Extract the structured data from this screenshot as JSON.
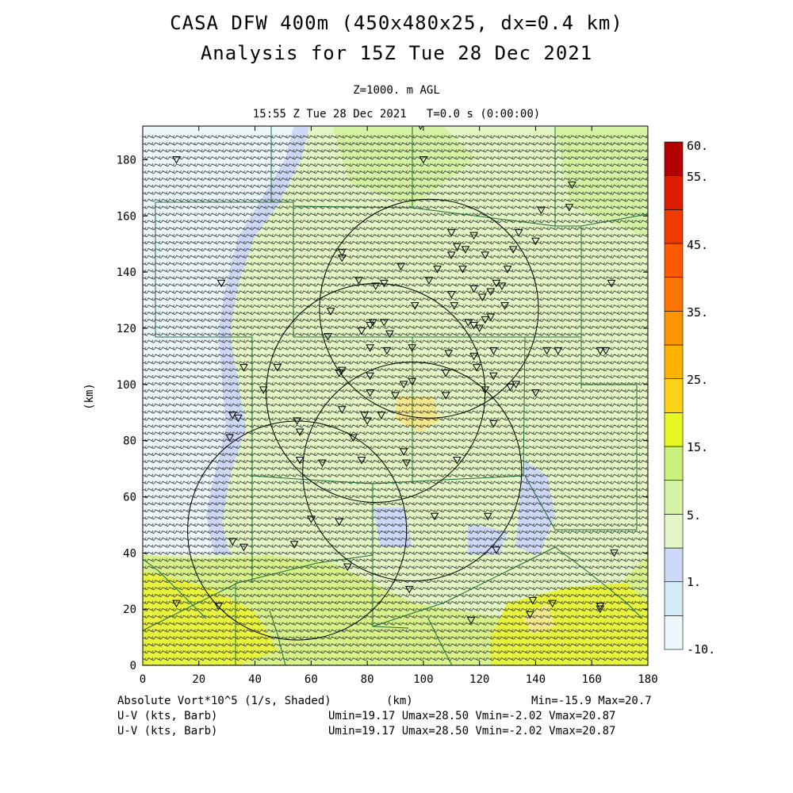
{
  "header": {
    "title_line1": "CASA DFW 400m (450x480x25, dx=0.4 km)",
    "title_line2": "Analysis for 15Z Tue 28 Dec 2021",
    "level": "Z=1000. m AGL",
    "time": "15:55 Z Tue 28 Dec 2021   T=0.0 s (0:00:00)"
  },
  "footer": {
    "field1": "Absolute Vort*10^5 (1/s, Shaded)",
    "xunit": "(km)",
    "minmax": "Min=-15.9 Max=20.7",
    "field2": "U-V (kts, Barb)",
    "stats2": "Umin=19.17 Umax=28.50 Vmin=-2.02 Vmax=20.87",
    "field3": "U-V (kts, Barb)",
    "stats3": "Umin=19.17 Umax=28.50 Vmin=-2.02 Vmax=20.87"
  },
  "chart_data": {
    "type": "heatmap",
    "title": "CASA DFW 400m (450x480x25, dx=0.4 km)",
    "xlabel": "(km)",
    "ylabel": "(km)",
    "xlim": [
      0,
      180
    ],
    "ylim": [
      0,
      192
    ],
    "x_ticks": [
      0,
      20,
      40,
      60,
      80,
      100,
      120,
      140,
      160,
      180
    ],
    "y_ticks": [
      0,
      20,
      40,
      60,
      80,
      100,
      120,
      140,
      160,
      180
    ],
    "colorbar": {
      "labels": [
        "60.",
        "55.",
        "45.",
        "35.",
        "25.",
        "15.",
        "5.",
        "1.",
        "-10."
      ],
      "colors": [
        "#ecf8fb",
        "#d2ecf7",
        "#ccd8f6",
        "#e2f7c4",
        "#d3f3a2",
        "#c8f07c",
        "#e6f524",
        "#ffd21a",
        "#ffb300",
        "#ff9400",
        "#ff7500",
        "#ff5a00",
        "#ef3a00",
        "#dd1c00",
        "#b20000"
      ]
    },
    "shading_regions": [
      {
        "label": "-10.",
        "color": "#ecf8fb"
      },
      {
        "label": "1.",
        "color": "#ccd8f6"
      },
      {
        "label": "5.",
        "color": "#e2f7c4"
      },
      {
        "label": "15.",
        "color": "#c8f07c"
      },
      {
        "label": "25.",
        "color": "#ffd21a"
      }
    ],
    "radar_rings": [
      {
        "center": [
          102,
          127
        ],
        "radius": 39
      },
      {
        "center": [
          83,
          97
        ],
        "radius": 39
      },
      {
        "center": [
          96,
          69
        ],
        "radius": 39
      },
      {
        "center": [
          55,
          48
        ],
        "radius": 39
      }
    ],
    "stations": [
      [
        12,
        180
      ],
      [
        99,
        192
      ],
      [
        100,
        180
      ],
      [
        142,
        162
      ],
      [
        152,
        163
      ],
      [
        134,
        154
      ],
      [
        110,
        154
      ],
      [
        118,
        153
      ],
      [
        112,
        149
      ],
      [
        115,
        148
      ],
      [
        110,
        146
      ],
      [
        122,
        146
      ],
      [
        132,
        148
      ],
      [
        71,
        147
      ],
      [
        71,
        145
      ],
      [
        114,
        141
      ],
      [
        118,
        134
      ],
      [
        124,
        133
      ],
      [
        126,
        136
      ],
      [
        128,
        135
      ],
      [
        121,
        131
      ],
      [
        129,
        128
      ],
      [
        111,
        128
      ],
      [
        124,
        124
      ],
      [
        116,
        122
      ],
      [
        118,
        121
      ],
      [
        120,
        120
      ],
      [
        122,
        123
      ],
      [
        97,
        128
      ],
      [
        83,
        135
      ],
      [
        77,
        137
      ],
      [
        86,
        136
      ],
      [
        67,
        126
      ],
      [
        71,
        105
      ],
      [
        70,
        104
      ],
      [
        78,
        119
      ],
      [
        81,
        121
      ],
      [
        82,
        122
      ],
      [
        86,
        122
      ],
      [
        88,
        118
      ],
      [
        81,
        113
      ],
      [
        87,
        112
      ],
      [
        81,
        103
      ],
      [
        96,
        113
      ],
      [
        109,
        111
      ],
      [
        118,
        110
      ],
      [
        125,
        112
      ],
      [
        163,
        112
      ],
      [
        144,
        112
      ],
      [
        108,
        104
      ],
      [
        119,
        106
      ],
      [
        125,
        103
      ],
      [
        133,
        100
      ],
      [
        131,
        99
      ],
      [
        122,
        98
      ],
      [
        140,
        97
      ],
      [
        108,
        96
      ],
      [
        81,
        97
      ],
      [
        96,
        101
      ],
      [
        93,
        100
      ],
      [
        71,
        91
      ],
      [
        79,
        89
      ],
      [
        80,
        87
      ],
      [
        85,
        89
      ],
      [
        55,
        87
      ],
      [
        56,
        83
      ],
      [
        34,
        88
      ],
      [
        32,
        89
      ],
      [
        31,
        81
      ],
      [
        48,
        106
      ],
      [
        28,
        136
      ],
      [
        36,
        106
      ],
      [
        43,
        98
      ],
      [
        75,
        81
      ],
      [
        78,
        73
      ],
      [
        94,
        72
      ],
      [
        112,
        73
      ],
      [
        125,
        86
      ],
      [
        93,
        76
      ],
      [
        123,
        53
      ],
      [
        104,
        53
      ],
      [
        70,
        51
      ],
      [
        60,
        52
      ],
      [
        64,
        72
      ],
      [
        56,
        73
      ],
      [
        54,
        43
      ],
      [
        73,
        35
      ],
      [
        36,
        42
      ],
      [
        32,
        44
      ],
      [
        95,
        27
      ],
      [
        126,
        41
      ],
      [
        138,
        18
      ],
      [
        139,
        23
      ],
      [
        146,
        22
      ],
      [
        163,
        21
      ],
      [
        163,
        20
      ],
      [
        168,
        40
      ],
      [
        12,
        22
      ],
      [
        27,
        21
      ],
      [
        117,
        16
      ],
      [
        148,
        112
      ],
      [
        165,
        112
      ],
      [
        167,
        136
      ],
      [
        153,
        171
      ],
      [
        140,
        151
      ],
      [
        130,
        141
      ],
      [
        105,
        141
      ],
      [
        102,
        137
      ],
      [
        92,
        142
      ],
      [
        110,
        132
      ],
      [
        90,
        96
      ],
      [
        66,
        117
      ]
    ]
  }
}
